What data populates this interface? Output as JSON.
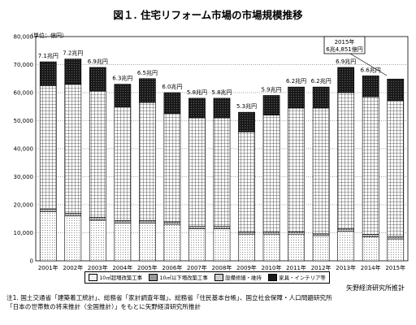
{
  "title": "図１. 住宅リフォーム市場の市場規模推移",
  "unit_label": "（単位：億円）",
  "source": "矢野経済研究所推計",
  "notes": [
    "注1. 国土交通省「建築着工統計」、総務省「家計調査年報」、総務省「住民基本台帳」、国立社会保障・人口問題研究所",
    "「日本の世帯数の将来推計（全国推計）」をもとに矢野経済研究所推計"
  ],
  "callout": [
    "2015年",
    "6兆4,851億円"
  ],
  "chart_data": {
    "type": "bar",
    "stacked": true,
    "categories": [
      "2001年",
      "2002年",
      "2003年",
      "2004年",
      "2005年",
      "2006年",
      "2007年",
      "2008年",
      "2009年",
      "2010年",
      "2011年",
      "2012年",
      "2013年",
      "2014年",
      "2015年"
    ],
    "totals": [
      71000,
      72000,
      69000,
      63000,
      65000,
      60000,
      58000,
      58000,
      53000,
      59000,
      62000,
      62000,
      69000,
      66000,
      64851
    ],
    "total_labels": [
      "7.1兆円",
      "7.2兆円",
      "6.9兆円",
      "6.3兆円",
      "6.5兆円",
      "6.0兆円",
      "5.8兆円",
      "5.8兆円",
      "5.3兆円",
      "5.9兆円",
      "6.2兆円",
      "6.2兆円",
      "6.9兆円",
      "6.6兆円",
      ""
    ],
    "series": [
      {
        "name": "10㎡超増改築工事",
        "pattern": "dots",
        "values": [
          17500,
          16000,
          14500,
          13500,
          13500,
          13000,
          11500,
          11500,
          9500,
          9500,
          9500,
          9000,
          10500,
          8500,
          7800
        ]
      },
      {
        "name": "10㎡以下増改築工事",
        "pattern": "dense-dots",
        "values": [
          1000,
          1000,
          1000,
          900,
          900,
          900,
          800,
          800,
          700,
          700,
          800,
          800,
          900,
          900,
          900
        ]
      },
      {
        "name": "設備修繕・維持",
        "pattern": "grid",
        "values": [
          44000,
          46000,
          45000,
          40500,
          42100,
          38600,
          38700,
          38700,
          35800,
          41800,
          44200,
          44700,
          48600,
          49100,
          48351
        ]
      },
      {
        "name": "家具・インテリア等",
        "pattern": "black",
        "values": [
          8500,
          9000,
          8500,
          8100,
          8500,
          7500,
          7000,
          7000,
          7000,
          7000,
          7500,
          7500,
          9000,
          7500,
          7800
        ]
      }
    ],
    "ylim": [
      0,
      80000
    ],
    "yticks": [
      "0",
      "10,000",
      "20,000",
      "30,000",
      "40,000",
      "50,000",
      "60,000",
      "70,000",
      "80,000"
    ],
    "grid": true,
    "legend_position": "bottom"
  }
}
